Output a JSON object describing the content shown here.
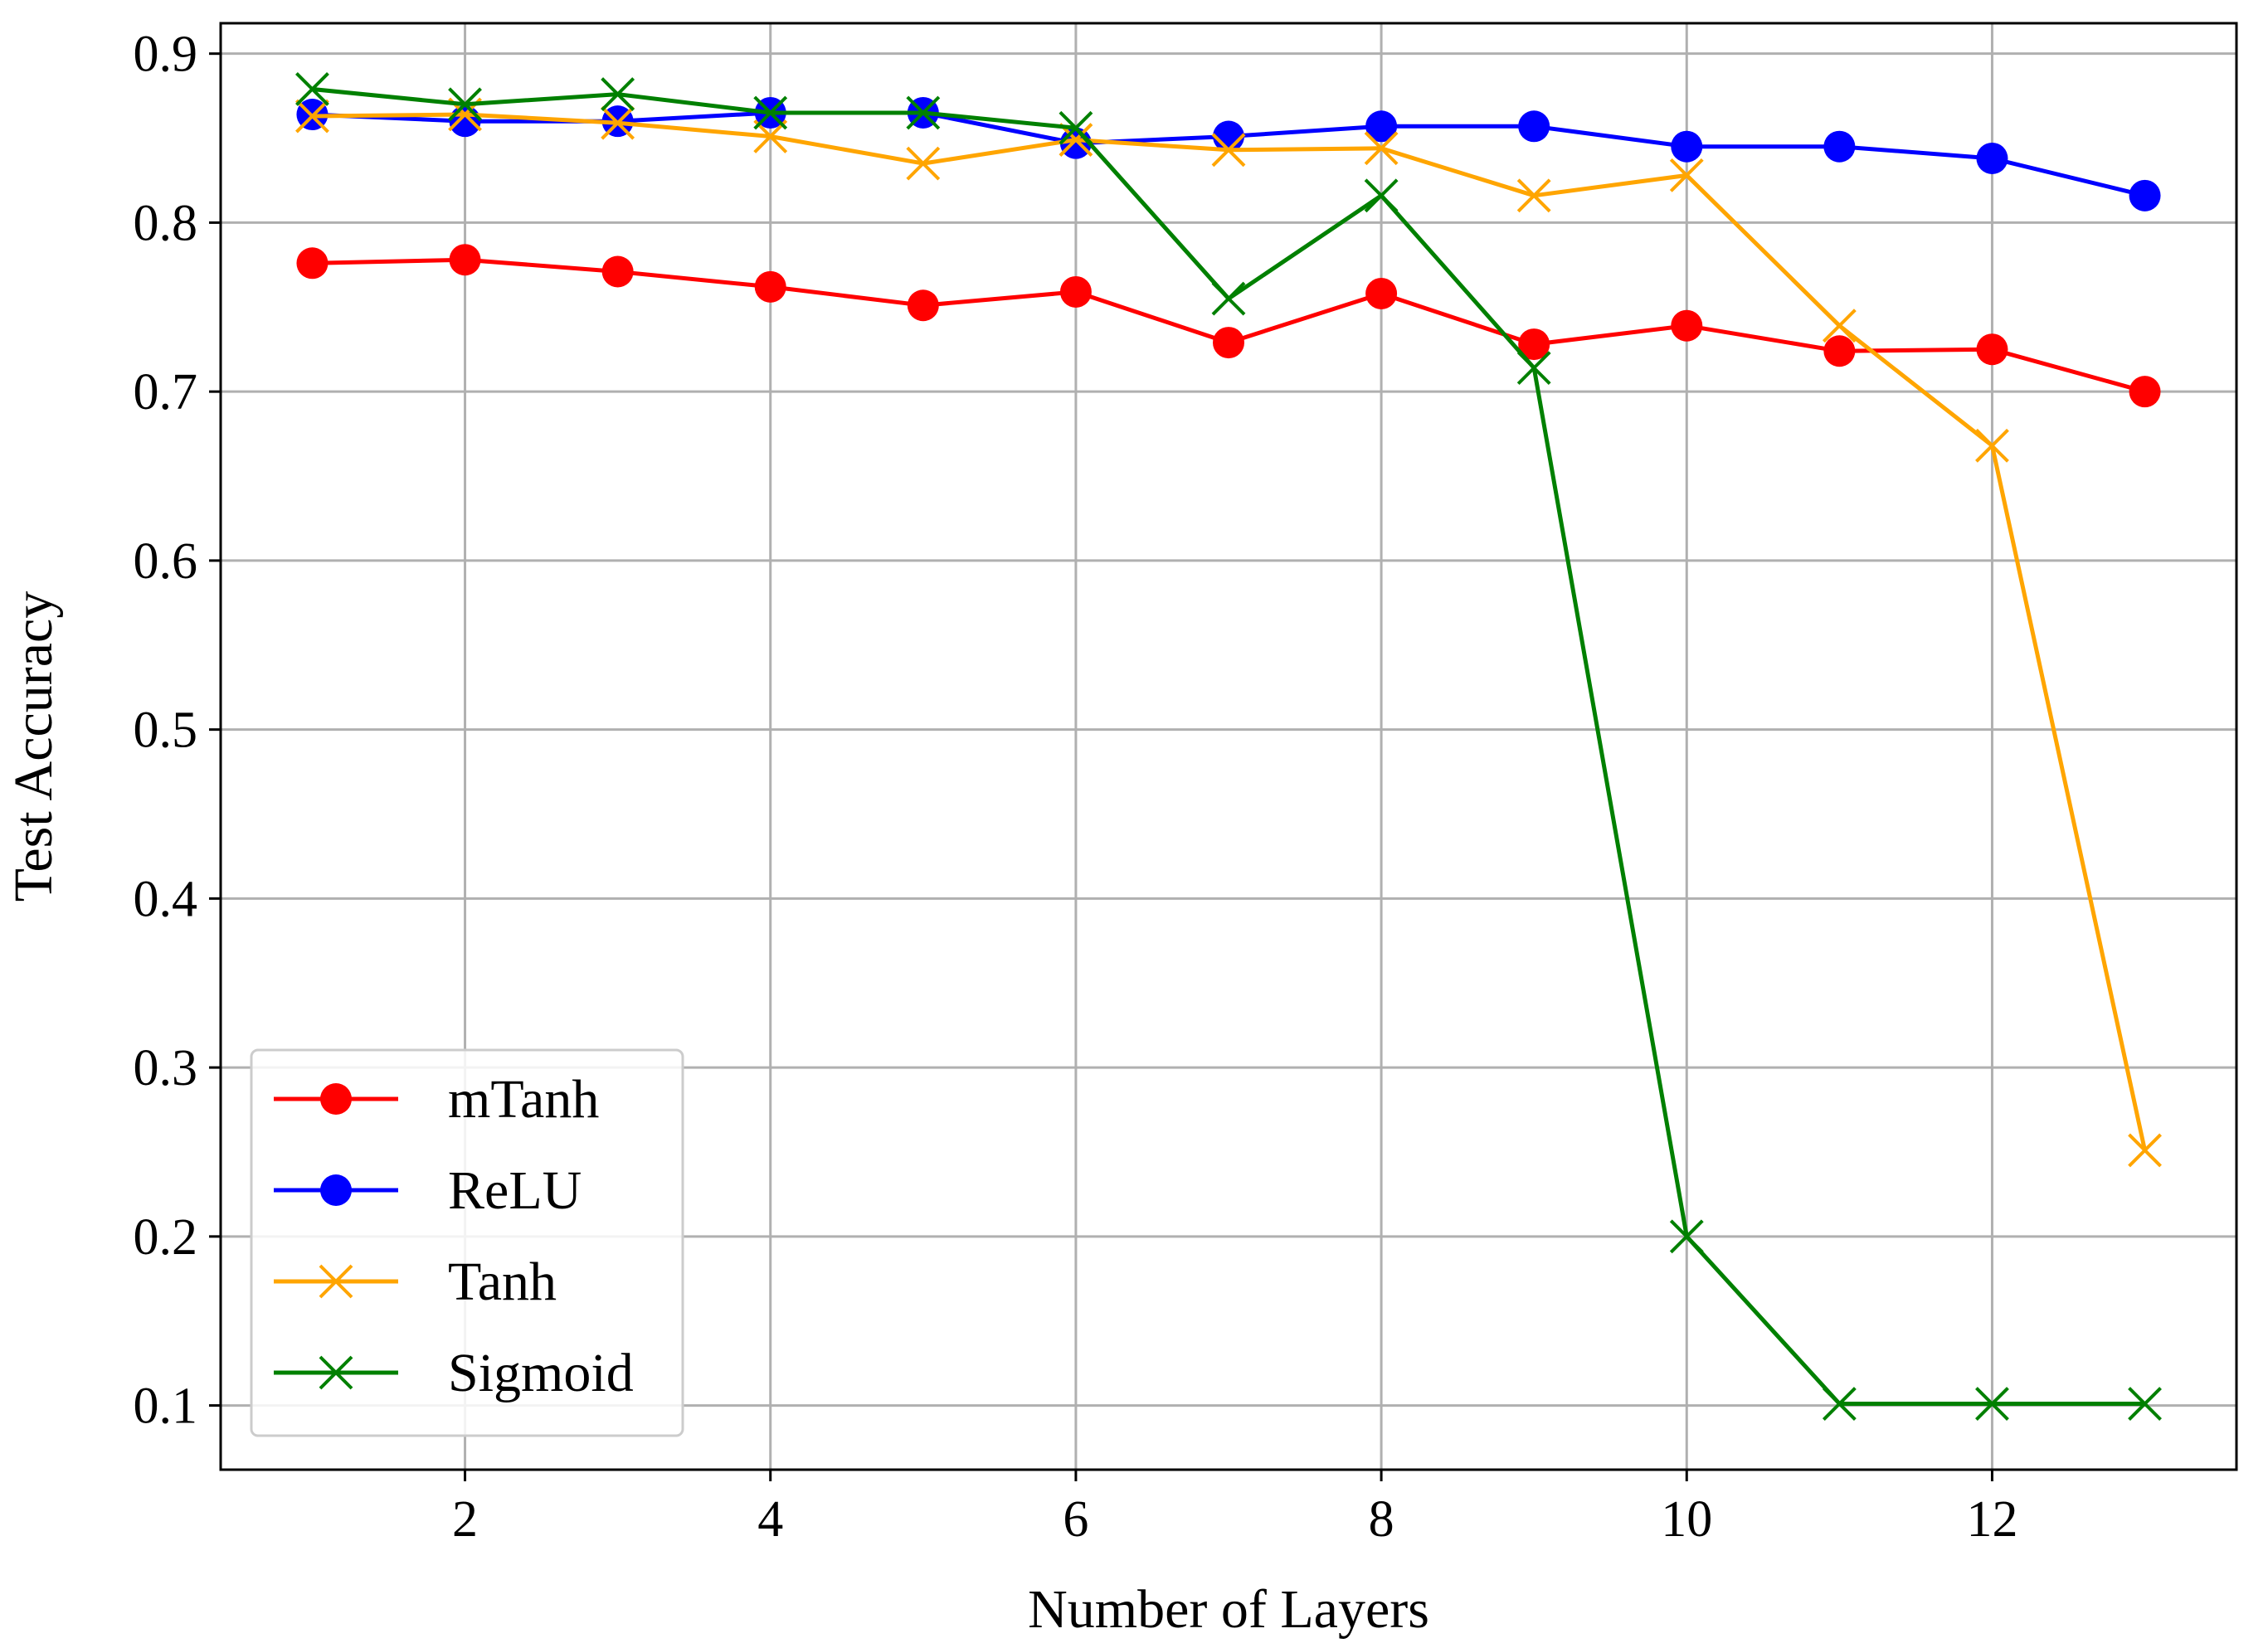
{
  "chart_data": {
    "type": "line",
    "title": "",
    "xlabel": "Number of Layers",
    "ylabel": "Test Accuracy",
    "xlim": [
      0.4,
      13.6
    ],
    "ylim": [
      0.062,
      0.918
    ],
    "x": [
      1,
      2,
      3,
      4,
      5,
      6,
      7,
      8,
      9,
      10,
      11,
      12,
      13
    ],
    "xticks": [
      2,
      4,
      6,
      8,
      10,
      12
    ],
    "xtick_labels": [
      "2",
      "4",
      "6",
      "8",
      "10",
      "12"
    ],
    "yticks": [
      0.1,
      0.2,
      0.3,
      0.4,
      0.5,
      0.6,
      0.7,
      0.8,
      0.9
    ],
    "ytick_labels": [
      "0.1",
      "0.2",
      "0.3",
      "0.4",
      "0.5",
      "0.6",
      "0.7",
      "0.8",
      "0.9"
    ],
    "grid": true,
    "legend_position": "lower-left",
    "series": [
      {
        "name": "mTanh",
        "color": "#ff0000",
        "marker": "circle",
        "values": [
          0.776,
          0.778,
          0.771,
          0.762,
          0.751,
          0.759,
          0.729,
          0.758,
          0.728,
          0.739,
          0.724,
          0.725,
          0.7
        ]
      },
      {
        "name": "ReLU",
        "color": "#0000ff",
        "marker": "circle",
        "values": [
          0.864,
          0.86,
          0.86,
          0.865,
          0.865,
          0.847,
          0.851,
          0.857,
          0.857,
          0.845,
          0.845,
          0.838,
          0.816
        ]
      },
      {
        "name": "Tanh",
        "color": "#ffa500",
        "marker": "x",
        "values": [
          0.863,
          0.864,
          0.859,
          0.851,
          0.835,
          0.849,
          0.843,
          0.844,
          0.816,
          0.828,
          0.739,
          0.668,
          0.251
        ]
      },
      {
        "name": "Sigmoid",
        "color": "#008000",
        "marker": "x",
        "values": [
          0.879,
          0.87,
          0.876,
          0.865,
          0.865,
          0.856,
          0.755,
          0.816,
          0.714,
          0.2,
          0.101,
          0.101,
          0.101
        ]
      }
    ]
  }
}
